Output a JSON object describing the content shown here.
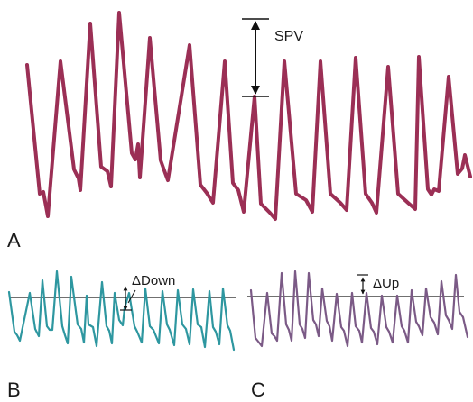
{
  "panels": [
    {
      "label": "A",
      "annotation": "SPV",
      "color": "#9b2f55"
    },
    {
      "label": "B",
      "annotation": "ΔDown",
      "color": "#2e97a0"
    },
    {
      "label": "C",
      "annotation": "ΔUp",
      "color": "#7b5a86"
    }
  ],
  "colors": {
    "reference_line": "#1a1a1a",
    "arrows": "#111111",
    "background": "#ffffff"
  }
}
